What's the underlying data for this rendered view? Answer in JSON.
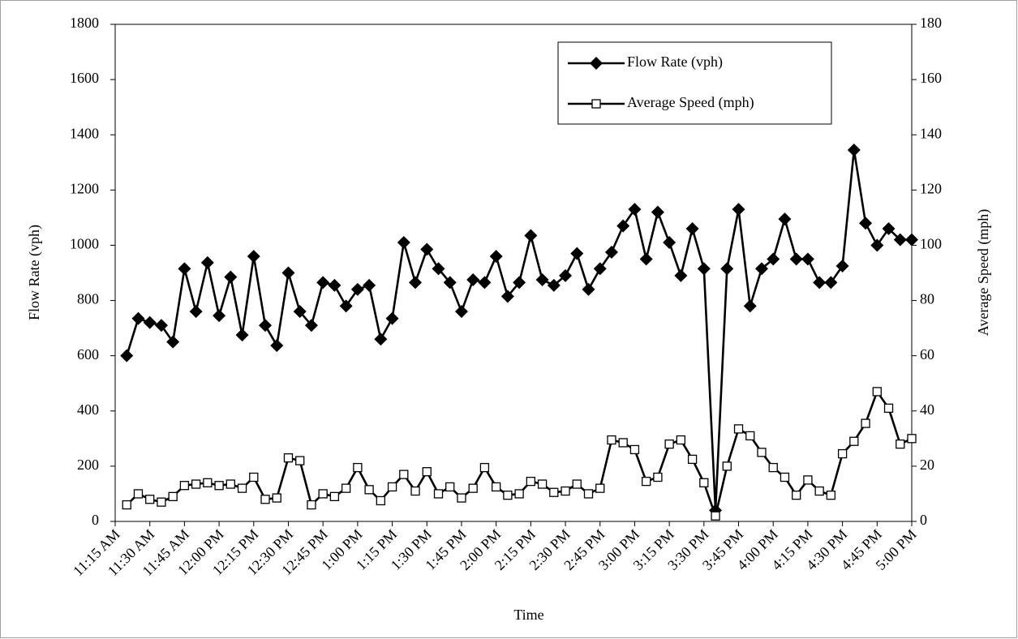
{
  "chart_data": {
    "type": "line",
    "x_label": "Time",
    "y_label": "Flow Rate (vph)",
    "y2_label": "Average Speed (mph)",
    "categories": [
      "11:15 AM",
      null,
      null,
      "11:30 AM",
      null,
      null,
      "11:45 AM",
      null,
      null,
      "12:00 PM",
      null,
      null,
      "12:15 PM",
      null,
      null,
      "12:30 PM",
      null,
      null,
      "12:45 PM",
      null,
      null,
      "1:00 PM",
      null,
      null,
      "1:15 PM",
      null,
      null,
      "1:30 PM",
      null,
      null,
      "1:45 PM",
      null,
      null,
      "2:00 PM",
      null,
      null,
      "2:15 PM",
      null,
      null,
      "2:30 PM",
      null,
      null,
      "2:45 PM",
      null,
      null,
      "3:00 PM",
      null,
      null,
      "3:15 PM",
      null,
      null,
      "3:30 PM",
      null,
      null,
      "3:45 PM",
      null,
      null,
      "4:00 PM",
      null,
      null,
      "4:15 PM",
      null,
      null,
      "4:30 PM",
      null,
      null,
      "4:45 PM",
      null,
      null,
      "5:00 PM"
    ],
    "series": [
      {
        "name": "Flow Rate (vph)",
        "color": "#000000",
        "marker": "diamond",
        "axis": "y",
        "values": [
          null,
          600,
          735,
          720,
          710,
          650,
          915,
          760,
          937,
          745,
          885,
          675,
          960,
          710,
          637,
          900,
          760,
          710,
          865,
          855,
          780,
          840,
          855,
          660,
          735,
          1010,
          865,
          985,
          915,
          865,
          760,
          875,
          865,
          960,
          815,
          865,
          1035,
          875,
          855,
          890,
          970,
          840,
          915,
          975,
          1070,
          1130,
          950,
          1120,
          1010,
          890,
          1060,
          915,
          40,
          915,
          1130,
          780,
          915,
          950,
          1095,
          950,
          950,
          865,
          865,
          925,
          1345,
          1080,
          1000,
          1060,
          1020,
          1020
        ]
      },
      {
        "name": "Average Speed (mph)",
        "color": "#000000",
        "marker": "square",
        "axis": "y2",
        "values": [
          null,
          6,
          10,
          8,
          7,
          9,
          13,
          13.5,
          14,
          13,
          13.5,
          12,
          16,
          8,
          8.5,
          23,
          22,
          6,
          10,
          9,
          12,
          19.5,
          11.5,
          7.5,
          12.5,
          17,
          11,
          18,
          10,
          12.5,
          8.5,
          12,
          19.5,
          12.5,
          9.5,
          10,
          14.5,
          13.5,
          10.5,
          11,
          13.5,
          10,
          12,
          29.5,
          28.5,
          26,
          14.5,
          16,
          28,
          29.5,
          22.5,
          14,
          2,
          20,
          33.5,
          31,
          25,
          19.5,
          16,
          9.5,
          15,
          11,
          9.5,
          24.5,
          29,
          35.5,
          47,
          41,
          28,
          30
        ]
      }
    ],
    "ylim": [
      0,
      1800
    ],
    "yticks": [
      0,
      200,
      400,
      600,
      800,
      1000,
      1200,
      1400,
      1600,
      1800
    ],
    "y2lim": [
      0,
      180
    ],
    "y2ticks": [
      0,
      20,
      40,
      60,
      80,
      100,
      120,
      140,
      160,
      180
    ],
    "grid": false,
    "legend": "top-right"
  }
}
